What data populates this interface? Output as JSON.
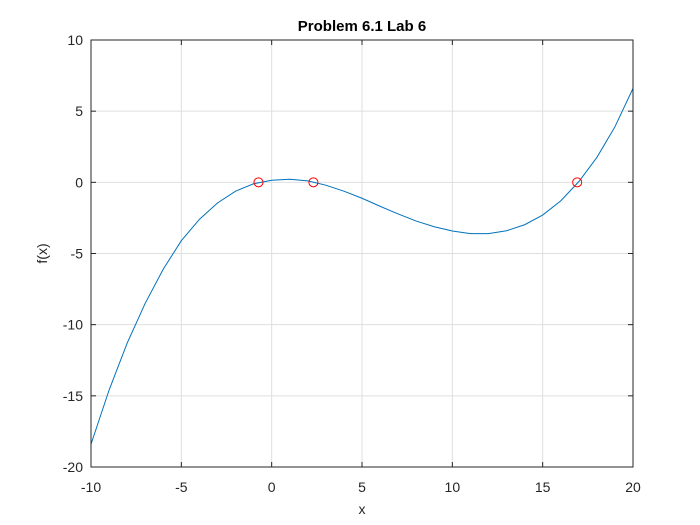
{
  "chart_data": {
    "type": "line",
    "title": "Problem 6.1 Lab 6",
    "xlabel": "x",
    "ylabel": "f(x)",
    "xlim": [
      -10,
      20
    ],
    "ylim": [
      -20,
      10
    ],
    "grid": true,
    "x_ticks": [
      -10,
      -5,
      0,
      5,
      10,
      15,
      20
    ],
    "y_ticks": [
      -20,
      -15,
      -10,
      -5,
      0,
      5,
      10
    ],
    "x_tick_labels": [
      "-10",
      "-5",
      "0",
      "5",
      "10",
      "15",
      "20"
    ],
    "y_tick_labels": [
      "-20",
      "-15",
      "-10",
      "-5",
      "0",
      "5",
      "10"
    ],
    "series": [
      {
        "color": "#0072bd",
        "style": "line",
        "x": [
          -10,
          -9,
          -8,
          -7,
          -6,
          -5,
          -4,
          -3,
          -2,
          -1,
          0,
          1,
          2,
          3,
          4,
          5,
          6,
          7,
          8,
          9,
          10,
          11,
          12,
          13,
          14,
          15,
          16,
          17,
          18,
          19,
          20
        ],
        "y": [
          -18.4,
          -14.6,
          -11.3,
          -8.5,
          -6.1,
          -4.1,
          -2.6,
          -1.45,
          -0.62,
          -0.1,
          0.15,
          0.22,
          0.1,
          -0.2,
          -0.62,
          -1.12,
          -1.68,
          -2.22,
          -2.72,
          -3.12,
          -3.42,
          -3.6,
          -3.6,
          -3.4,
          -2.98,
          -2.3,
          -1.3,
          0.05,
          1.75,
          3.9,
          6.6
        ]
      },
      {
        "color": "#ff0000",
        "style": "markers",
        "marker": "circle",
        "x": [
          -0.73,
          2.31,
          16.91
        ],
        "y": [
          0,
          0,
          0
        ]
      }
    ]
  }
}
